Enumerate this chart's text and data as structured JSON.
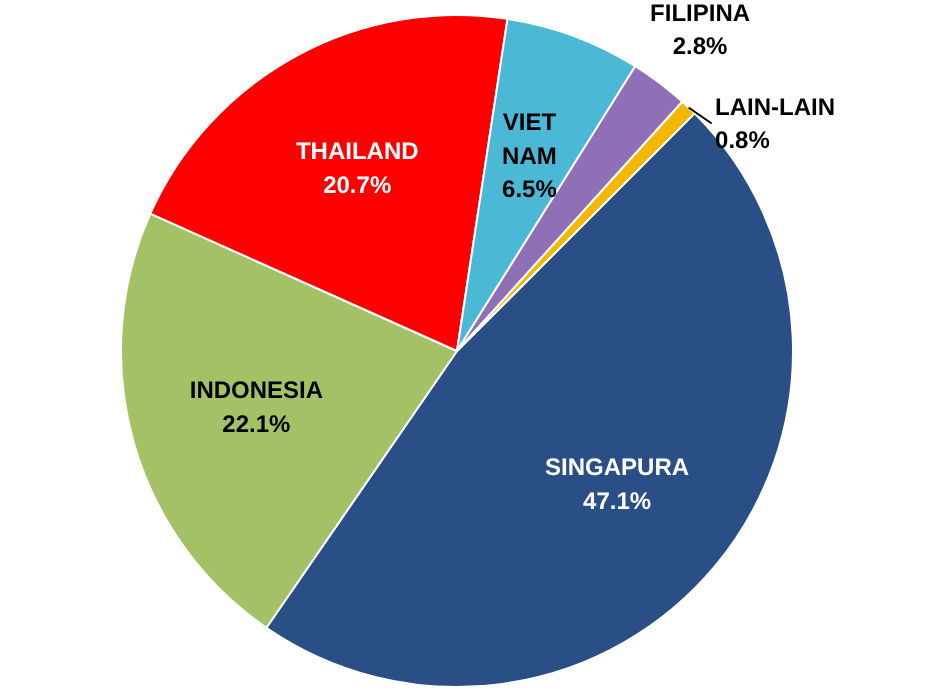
{
  "chart_data": {
    "type": "pie",
    "categories": [
      "SINGAPURA",
      "INDONESIA",
      "THAILAND",
      "VIET NAM",
      "FILIPINA",
      "LAIN-LAIN"
    ],
    "values": [
      47.1,
      22.1,
      20.7,
      6.5,
      2.8,
      0.8
    ],
    "colors": [
      "#2a4f86",
      "#a4c165",
      "#ff0000",
      "#4bb8d6",
      "#8f6fb5",
      "#f5b800"
    ],
    "value_labels": [
      "47.1%",
      "22.1%",
      "20.7%",
      "6.5%",
      "2.8%",
      "0.8%"
    ]
  }
}
